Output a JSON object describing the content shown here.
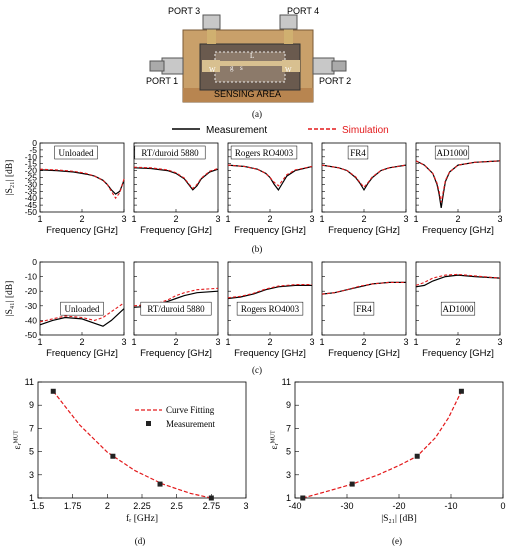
{
  "photo": {
    "port_labels": [
      "PORT 3",
      "PORT 4",
      "PORT 1",
      "PORT 2"
    ],
    "area_label": "SENSING AREA",
    "dimension_labels": [
      "W",
      "L",
      "s",
      "g",
      "W"
    ]
  },
  "legend_top": {
    "measurement": "Measurement",
    "simulation": "Simulation"
  },
  "legend_d": {
    "fit": "Curve Fitting",
    "meas": "Measurement"
  },
  "captions": {
    "a": "(a)",
    "b": "(b)",
    "c": "(c)",
    "d": "(d)",
    "e": "(e)"
  },
  "colors": {
    "measurement": "#000000",
    "simulation": "#e31a1c"
  },
  "chart_data": [
    {
      "id": "b",
      "type": "line",
      "ylabel": "|S₂₁| [dB]",
      "xlabel": "Frequency [GHz]",
      "xlim": [
        1,
        3
      ],
      "ylim": [
        -50,
        0
      ],
      "xticks": [
        1,
        2,
        3
      ],
      "yticks": [
        0,
        -5,
        -10,
        -15,
        -20,
        -25,
        -30,
        -35,
        -40,
        -45,
        -50
      ],
      "panels": [
        {
          "label": "Unloaded",
          "measurement": {
            "x": [
              1,
              1.4,
              1.8,
              2.1,
              2.3,
              2.5,
              2.6,
              2.7,
              2.8,
              2.9,
              3.0
            ],
            "y": [
              -19.5,
              -20,
              -21,
              -22.5,
              -24,
              -27,
              -30,
              -34,
              -37,
              -35,
              -27
            ]
          },
          "simulation": {
            "x": [
              1,
              1.4,
              1.8,
              2.1,
              2.3,
              2.5,
              2.6,
              2.7,
              2.8,
              2.9,
              3.0
            ],
            "y": [
              -19,
              -19.5,
              -20.5,
              -22,
              -24,
              -27,
              -30,
              -35,
              -40,
              -36,
              -26
            ]
          }
        },
        {
          "label": "RT/duroid 5880",
          "measurement": {
            "x": [
              1,
              1.4,
              1.8,
              2.0,
              2.2,
              2.3,
              2.4,
              2.5,
              2.6,
              2.8,
              3.0
            ],
            "y": [
              -18,
              -18.5,
              -20,
              -22,
              -26,
              -30,
              -34,
              -31,
              -26,
              -21,
              -19
            ]
          },
          "simulation": {
            "x": [
              1,
              1.4,
              1.8,
              2.0,
              2.2,
              2.3,
              2.4,
              2.5,
              2.6,
              2.8,
              3.0
            ],
            "y": [
              -17.5,
              -18,
              -19.5,
              -21.5,
              -25.5,
              -29.5,
              -33,
              -30,
              -25.5,
              -20.5,
              -18.5
            ]
          }
        },
        {
          "label": "Rogers RO4003",
          "measurement": {
            "x": [
              1,
              1.4,
              1.7,
              1.9,
              2.0,
              2.1,
              2.2,
              2.3,
              2.4,
              2.6,
              3.0
            ],
            "y": [
              -16,
              -17,
              -19,
              -22,
              -25,
              -30,
              -34,
              -29,
              -24,
              -20,
              -17
            ]
          },
          "simulation": {
            "x": [
              1,
              1.4,
              1.7,
              1.9,
              2.0,
              2.1,
              2.2,
              2.3,
              2.4,
              2.6,
              3.0
            ],
            "y": [
              -16,
              -17,
              -19,
              -22,
              -25,
              -28.5,
              -31,
              -27,
              -23,
              -19.5,
              -17
            ]
          }
        },
        {
          "label": "FR4",
          "measurement": {
            "x": [
              1,
              1.4,
              1.6,
              1.8,
              1.9,
              2.0,
              2.1,
              2.2,
              2.4,
              2.6,
              3.0
            ],
            "y": [
              -16,
              -18,
              -20,
              -25,
              -29,
              -34,
              -29,
              -25,
              -20,
              -18,
              -16
            ]
          },
          "simulation": {
            "x": [
              1,
              1.4,
              1.6,
              1.8,
              1.9,
              2.0,
              2.1,
              2.2,
              2.4,
              2.6,
              3.0
            ],
            "y": [
              -16,
              -18,
              -20,
              -24.5,
              -28.5,
              -32,
              -28.5,
              -24.5,
              -20,
              -18,
              -16
            ]
          }
        },
        {
          "label": "AD1000",
          "measurement": {
            "x": [
              1,
              1.2,
              1.4,
              1.5,
              1.55,
              1.6,
              1.65,
              1.7,
              1.8,
              2.0,
              2.4,
              3.0
            ],
            "y": [
              -13,
              -16,
              -22,
              -30,
              -37,
              -47,
              -37,
              -28,
              -21,
              -16,
              -14,
              -13
            ]
          },
          "simulation": {
            "x": [
              1,
              1.2,
              1.4,
              1.5,
              1.55,
              1.6,
              1.65,
              1.7,
              1.8,
              2.0,
              2.4,
              3.0
            ],
            "y": [
              -13,
              -16,
              -22,
              -29,
              -35,
              -43,
              -35,
              -27,
              -21,
              -16,
              -14,
              -13
            ]
          }
        }
      ]
    },
    {
      "id": "c",
      "type": "line",
      "ylabel": "|S₄₁| [dB]",
      "xlabel": "Frequency [GHz]",
      "xlim": [
        1,
        3
      ],
      "ylim": [
        -50,
        0
      ],
      "xticks": [
        1,
        2,
        3
      ],
      "yticks": [
        0,
        -10,
        -20,
        -30,
        -40,
        -50
      ],
      "panels": [
        {
          "label": "Unloaded",
          "measurement": {
            "x": [
              1,
              1.3,
              1.6,
              2.0,
              2.3,
              2.5,
              2.7,
              3.0
            ],
            "y": [
              -43,
              -40,
              -38,
              -39,
              -42,
              -44,
              -40,
              -32
            ]
          },
          "simulation": {
            "x": [
              1,
              1.3,
              1.6,
              2.0,
              2.3,
              2.5,
              2.7,
              3.0
            ],
            "y": [
              -41,
              -39,
              -37,
              -38,
              -40,
              -38,
              -34,
              -28
            ]
          }
        },
        {
          "label": "RT/duroid 5880",
          "measurement": {
            "x": [
              1,
              1.5,
              1.8,
              2.0,
              2.2,
              2.5,
              3.0
            ],
            "y": [
              -31,
              -30,
              -27,
              -25,
              -23,
              -21,
              -20
            ]
          },
          "simulation": {
            "x": [
              1,
              1.5,
              1.8,
              2.0,
              2.2,
              2.5,
              3.0
            ],
            "y": [
              -30,
              -29,
              -26,
              -23,
              -21,
              -19,
              -18
            ]
          }
        },
        {
          "label": "Rogers RO4003",
          "measurement": {
            "x": [
              1,
              1.3,
              1.6,
              1.9,
              2.2,
              2.6,
              3.0
            ],
            "y": [
              -25,
              -24,
              -22,
              -19,
              -17,
              -16,
              -16
            ]
          },
          "simulation": {
            "x": [
              1,
              1.3,
              1.6,
              1.9,
              2.2,
              2.6,
              3.0
            ],
            "y": [
              -24.5,
              -23.5,
              -21.5,
              -18.5,
              -16.5,
              -15.5,
              -15.5
            ]
          }
        },
        {
          "label": "FR4",
          "measurement": {
            "x": [
              1,
              1.3,
              1.6,
              1.9,
              2.2,
              2.6,
              3.0
            ],
            "y": [
              -22,
              -21,
              -19,
              -17,
              -15,
              -14,
              -14
            ]
          },
          "simulation": {
            "x": [
              1,
              1.3,
              1.6,
              1.9,
              2.2,
              2.6,
              3.0
            ],
            "y": [
              -22,
              -21,
              -19,
              -16.5,
              -15,
              -14,
              -14
            ]
          }
        },
        {
          "label": "AD1000",
          "measurement": {
            "x": [
              1,
              1.2,
              1.4,
              1.7,
              2.0,
              2.4,
              3.0
            ],
            "y": [
              -17,
              -16,
              -13,
              -10,
              -9,
              -10,
              -11
            ]
          },
          "simulation": {
            "x": [
              1,
              1.2,
              1.4,
              1.7,
              2.0,
              2.4,
              3.0
            ],
            "y": [
              -16,
              -14,
              -11,
              -9,
              -8.5,
              -9.5,
              -11
            ]
          }
        }
      ]
    },
    {
      "id": "d",
      "type": "scatter",
      "xlabel": "fᵣ [GHz]",
      "ylabel": "εᵣᴹᵁᵀ",
      "xlim": [
        1.5,
        3
      ],
      "ylim": [
        1,
        11
      ],
      "xticks": [
        1.5,
        1.75,
        2,
        2.25,
        2.5,
        2.75,
        3
      ],
      "yticks": [
        1,
        3,
        5,
        7,
        9,
        11
      ],
      "measurement": {
        "x": [
          1.61,
          2.04,
          2.38,
          2.75
        ],
        "y": [
          10.2,
          4.6,
          2.2,
          1.0
        ]
      },
      "fit": {
        "x": [
          1.61,
          1.8,
          2.0,
          2.2,
          2.4,
          2.6,
          2.75
        ],
        "y": [
          10.2,
          7.3,
          4.95,
          3.35,
          2.2,
          1.4,
          1.0
        ]
      }
    },
    {
      "id": "e",
      "type": "scatter",
      "xlabel": "|S₂₁| [dB]",
      "ylabel": "εᵣᴹᵁᵀ",
      "xlim": [
        -40,
        0
      ],
      "ylim": [
        1,
        11
      ],
      "xticks": [
        -40,
        -30,
        -20,
        -10,
        0
      ],
      "yticks": [
        1,
        3,
        5,
        7,
        9,
        11
      ],
      "measurement": {
        "x": [
          -38.5,
          -29,
          -16.5,
          -8
        ],
        "y": [
          1.0,
          2.2,
          4.6,
          10.2
        ]
      },
      "fit": {
        "x": [
          -38.5,
          -34,
          -29,
          -24,
          -20,
          -16.5,
          -13,
          -10.5,
          -8
        ],
        "y": [
          1.0,
          1.55,
          2.2,
          3.0,
          3.8,
          4.6,
          6.2,
          7.9,
          10.2
        ]
      }
    }
  ]
}
